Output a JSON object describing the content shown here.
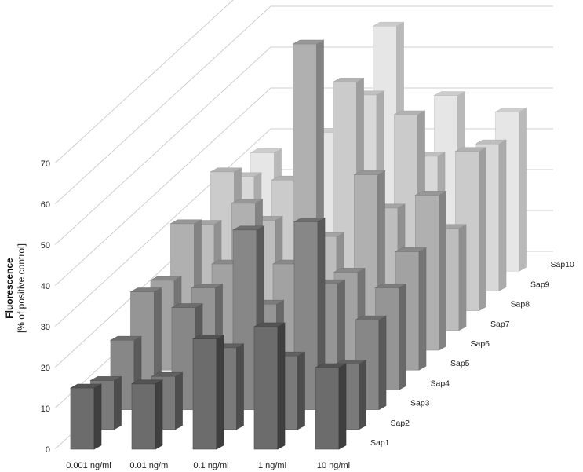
{
  "chart_data": {
    "type": "bar",
    "subtype": "3d-column",
    "ylabel": [
      "Fluorescence",
      "[% of positive control]"
    ],
    "ylim": [
      0,
      70
    ],
    "y_ticks": [
      0,
      10,
      20,
      30,
      40,
      50,
      60,
      70
    ],
    "grid": true,
    "legend": "none",
    "categories": [
      "0.001 ng/ml",
      "0.01 ng/ml",
      "0.1 ng/ml",
      "1  ng/ml",
      "10  ng/ml"
    ],
    "series": [
      {
        "name": "Sap1",
        "values": [
          15,
          16,
          27,
          30,
          20
        ]
      },
      {
        "name": "Sap2",
        "values": [
          12,
          13,
          20,
          18,
          16
        ]
      },
      {
        "name": "Sap3",
        "values": [
          17,
          25,
          44,
          46,
          22
        ]
      },
      {
        "name": "Sap4",
        "values": [
          24,
          25,
          21,
          26,
          25
        ]
      },
      {
        "name": "Sap5",
        "values": [
          22,
          26,
          26,
          24,
          29
        ]
      },
      {
        "name": "Sap6",
        "values": [
          31,
          36,
          75,
          43,
          38
        ]
      },
      {
        "name": "Sap7",
        "values": [
          26,
          27,
          23,
          30,
          25
        ]
      },
      {
        "name": "Sap8",
        "values": [
          34,
          32,
          56,
          48,
          39
        ]
      },
      {
        "name": "Sap9",
        "values": [
          28,
          28,
          48,
          33,
          36
        ]
      },
      {
        "name": "Sap10",
        "values": [
          29,
          34,
          60,
          43,
          39
        ]
      }
    ]
  }
}
